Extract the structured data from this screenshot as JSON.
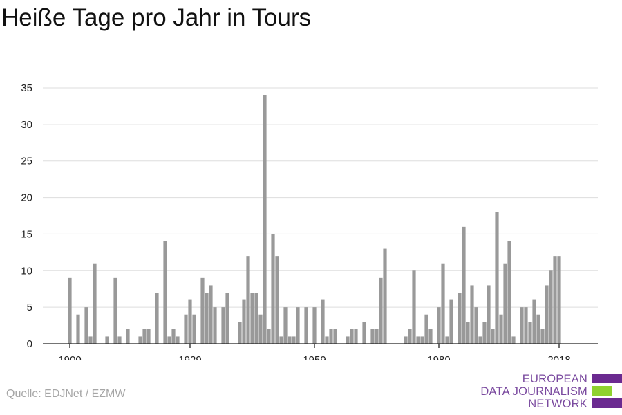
{
  "colors": {
    "bar": "#999999",
    "grid": "#dddddd",
    "axis": "#222222",
    "logo_purple": "#6b2a90",
    "logo_green": "#8fd22f"
  },
  "chart_data": {
    "type": "bar",
    "title": "Heiße Tage pro Jahr in Tours",
    "xlabel": "",
    "ylabel": "",
    "ylim": [
      0,
      35
    ],
    "yticks": [
      0,
      5,
      10,
      15,
      20,
      25,
      30,
      35
    ],
    "xticks": [
      1900,
      1929,
      1959,
      1989,
      2018
    ],
    "grid": true,
    "x": [
      1900,
      1901,
      1902,
      1903,
      1904,
      1905,
      1906,
      1907,
      1908,
      1909,
      1910,
      1911,
      1912,
      1913,
      1914,
      1915,
      1916,
      1917,
      1918,
      1919,
      1920,
      1921,
      1922,
      1923,
      1924,
      1925,
      1926,
      1927,
      1928,
      1929,
      1930,
      1931,
      1932,
      1933,
      1934,
      1935,
      1936,
      1937,
      1938,
      1939,
      1940,
      1941,
      1942,
      1943,
      1944,
      1945,
      1946,
      1947,
      1948,
      1949,
      1950,
      1951,
      1952,
      1953,
      1954,
      1955,
      1956,
      1957,
      1958,
      1959,
      1960,
      1961,
      1962,
      1963,
      1964,
      1965,
      1966,
      1967,
      1968,
      1969,
      1970,
      1971,
      1972,
      1973,
      1974,
      1975,
      1976,
      1977,
      1978,
      1979,
      1980,
      1981,
      1982,
      1983,
      1984,
      1985,
      1986,
      1987,
      1988,
      1989,
      1990,
      1991,
      1992,
      1993,
      1994,
      1995,
      1996,
      1997,
      1998,
      1999,
      2000,
      2001,
      2002,
      2003,
      2004,
      2005,
      2006,
      2007,
      2008,
      2009,
      2010,
      2011,
      2012,
      2013,
      2014,
      2015,
      2016,
      2017,
      2018,
      2019
    ],
    "values": [
      9,
      0,
      4,
      0,
      5,
      1,
      11,
      0,
      0,
      1,
      0,
      9,
      1,
      0,
      2,
      0,
      0,
      1,
      2,
      2,
      0,
      7,
      0,
      14,
      1,
      2,
      1,
      0,
      4,
      6,
      4,
      0,
      9,
      7,
      8,
      5,
      0,
      5,
      7,
      0,
      0,
      3,
      6,
      12,
      7,
      7,
      4,
      34,
      2,
      15,
      12,
      1,
      5,
      1,
      1,
      5,
      0,
      5,
      0,
      5,
      0,
      6,
      1,
      2,
      2,
      0,
      0,
      1,
      2,
      2,
      0,
      3,
      0,
      2,
      2,
      9,
      13,
      0,
      0,
      0,
      0,
      1,
      2,
      10,
      1,
      1,
      4,
      2,
      0,
      5,
      11,
      1,
      6,
      0,
      7,
      16,
      3,
      8,
      5,
      1,
      3,
      8,
      2,
      18,
      4,
      11,
      14,
      1,
      0,
      5,
      5,
      3,
      6,
      4,
      2,
      8,
      10,
      12,
      12,
      0
    ]
  },
  "source": "Quelle: EDJNet / EZMW",
  "logo": {
    "line1": "EUROPEAN",
    "line2": "DATA JOURNALISM",
    "line3": "NETWORK"
  }
}
